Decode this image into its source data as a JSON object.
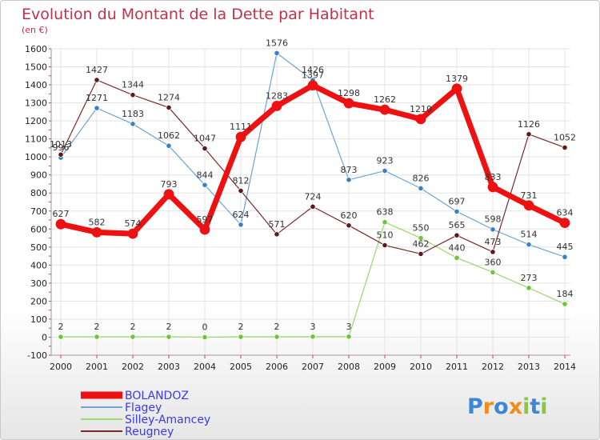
{
  "chart_data": {
    "type": "line",
    "title": "Evolution du Montant de la Dette par Habitant",
    "subtitle": "(en €)",
    "categories": [
      "2000",
      "2001",
      "2002",
      "2003",
      "2004",
      "2005",
      "2006",
      "2007",
      "2008",
      "2009",
      "2010",
      "2011",
      "2012",
      "2013",
      "2014"
    ],
    "ylim": [
      -100,
      1600
    ],
    "yticks": [
      -100,
      0,
      100,
      200,
      300,
      400,
      500,
      600,
      700,
      800,
      900,
      1000,
      1100,
      1200,
      1300,
      1400,
      1500,
      1600
    ],
    "grid": true,
    "legend_position": "bottom-left",
    "series": [
      {
        "name": "BOLANDOZ",
        "color": "#ee1111",
        "line_width": 7,
        "marker_color": "#ee1111",
        "values": [
          627,
          582,
          574,
          793,
          597,
          1111,
          1283,
          1397,
          1298,
          1262,
          1210,
          1379,
          833,
          731,
          634
        ]
      },
      {
        "name": "Flagey",
        "color": "#6aa4d8",
        "line_width": 1.2,
        "marker_color": "#3b7fc4",
        "values": [
          996,
          1271,
          1183,
          1062,
          844,
          624,
          1576,
          1426,
          873,
          923,
          826,
          697,
          598,
          514,
          445
        ]
      },
      {
        "name": "Silley-Amancey",
        "color": "#9ad86a",
        "line_width": 1.2,
        "marker_color": "#6cc63a",
        "values": [
          2,
          2,
          2,
          2,
          0,
          2,
          2,
          3,
          3,
          638,
          550,
          440,
          360,
          273,
          184
        ]
      },
      {
        "name": "Reugney",
        "color": "#7a2a2a",
        "line_width": 1.2,
        "marker_color": "#5e1a1a",
        "values": [
          1013,
          1427,
          1344,
          1274,
          1047,
          812,
          571,
          724,
          620,
          510,
          462,
          565,
          473,
          1126,
          1052
        ]
      }
    ]
  },
  "logo": {
    "text": "Proxiti",
    "letters": [
      "P",
      "r",
      "o",
      "x",
      "i",
      "t",
      "i"
    ],
    "colors": [
      "#3e86d6",
      "#f28c1a",
      "#3e86d6",
      "#f28c1a",
      "#8cc63e",
      "#3e86d6",
      "#8cc63e"
    ]
  }
}
